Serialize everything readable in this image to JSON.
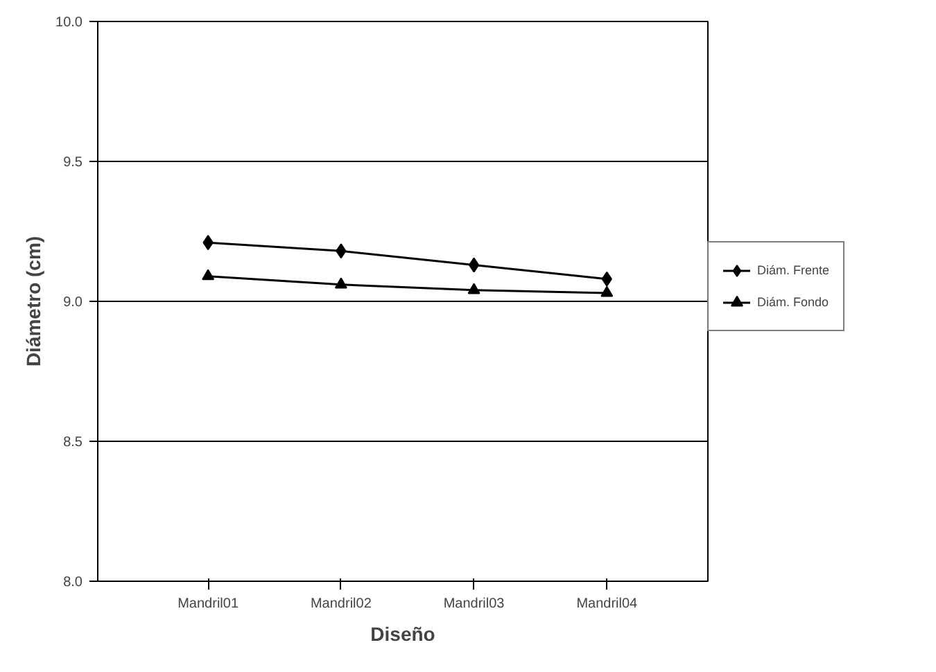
{
  "chart_data": {
    "type": "line",
    "xlabel": "Diseño",
    "ylabel": "Diámetro (cm)",
    "categories": [
      "Mandril01",
      "Mandril02",
      "Mandril03",
      "Mandril04"
    ],
    "series": [
      {
        "name": "Diám. Frente",
        "color": "#000000",
        "marker": "diamond",
        "values": [
          9.21,
          9.18,
          9.13,
          9.08
        ]
      },
      {
        "name": "Diám. Fondo",
        "color": "#000000",
        "marker": "triangle",
        "values": [
          9.09,
          9.06,
          9.04,
          9.03
        ]
      }
    ],
    "ylim": [
      8.0,
      10.0
    ],
    "yticks": [
      {
        "value": 8.0,
        "label": "8.0"
      },
      {
        "value": 8.5,
        "label": "8.5"
      },
      {
        "value": 9.0,
        "label": "9.0"
      },
      {
        "value": 9.5,
        "label": "9.5"
      },
      {
        "value": 10.0,
        "label": "10.0"
      }
    ],
    "grid": "y",
    "legend": "right"
  }
}
